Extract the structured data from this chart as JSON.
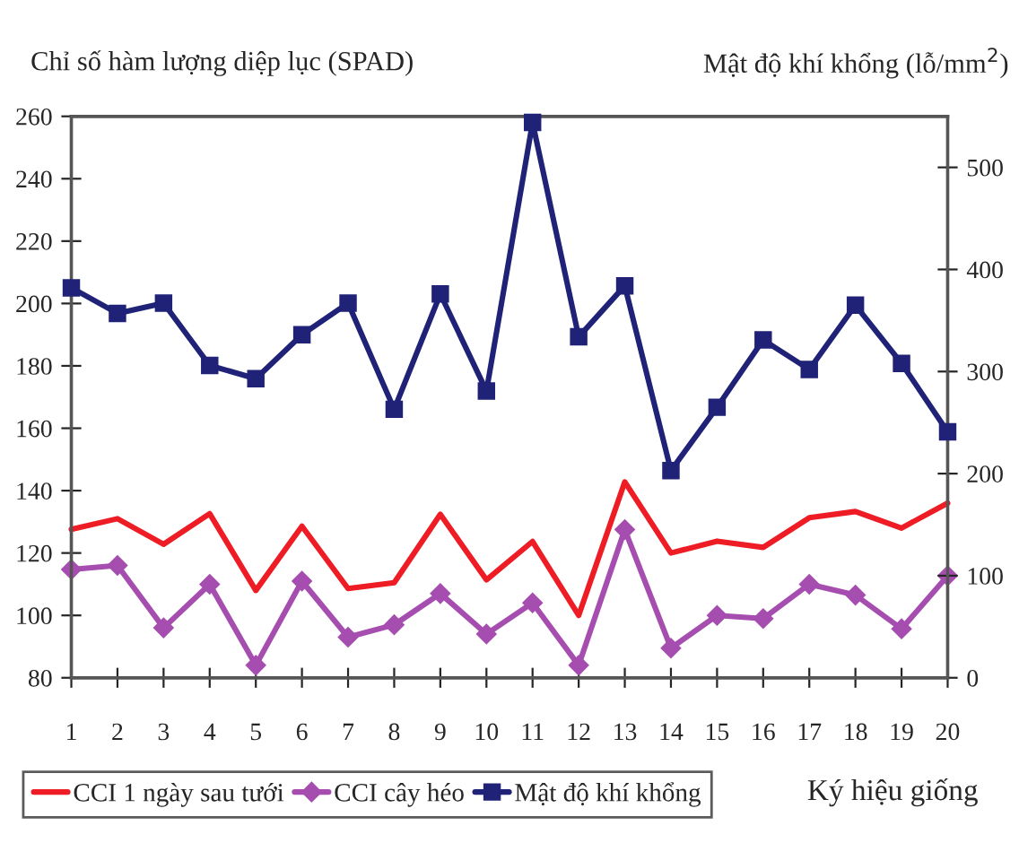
{
  "chart_data": {
    "type": "line",
    "ylabel": "Chỉ số hàm lượng diệp lục (SPAD)",
    "y2label": "Mật độ khí khổng (lỗ/mm$^{2}$)",
    "xlabel": "Ký hiệu giống",
    "categories": [
      "1",
      "2",
      "3",
      "4",
      "5",
      "6",
      "7",
      "8",
      "9",
      "10",
      "11",
      "12",
      "13",
      "14",
      "15",
      "16",
      "17",
      "18",
      "19",
      "20"
    ],
    "series": [
      {
        "name": "CCI 1 ngày sau tưới",
        "color": "#ee1c25",
        "marker": "none",
        "values": [
          127.6,
          131,
          122.8,
          132.6,
          108,
          128.6,
          108.6,
          110.5,
          132.4,
          111.4,
          123.7,
          100,
          142.8,
          120,
          123.8,
          121.8,
          131.3,
          133.3,
          128,
          136
        ]
      },
      {
        "name": "CCI cây héo",
        "color": "#a64db0",
        "marker": "diamond",
        "values": [
          114.7,
          116,
          96,
          110,
          84,
          111,
          93,
          97,
          107,
          94,
          104,
          84,
          127.5,
          89.5,
          100,
          99,
          110,
          106.5,
          95.7,
          112.7
        ]
      },
      {
        "name": "Mật độ khí khổng",
        "color": "#1f2277",
        "marker": "square",
        "axis": "y2",
        "values": [
          382,
          357,
          367,
          306,
          293,
          336,
          367,
          263,
          376,
          281,
          544,
          334,
          384,
          203,
          265,
          331,
          302,
          365,
          308,
          241
        ]
      }
    ],
    "ylim": [
      80,
      260
    ],
    "yticks": [
      80,
      100,
      120,
      140,
      160,
      180,
      200,
      220,
      240,
      260
    ],
    "y2lim": [
      0,
      550
    ],
    "y2ticks": [
      0,
      100,
      200,
      300,
      400,
      500
    ],
    "grid": false,
    "legend": "bottom left",
    "line_style": "solid"
  }
}
